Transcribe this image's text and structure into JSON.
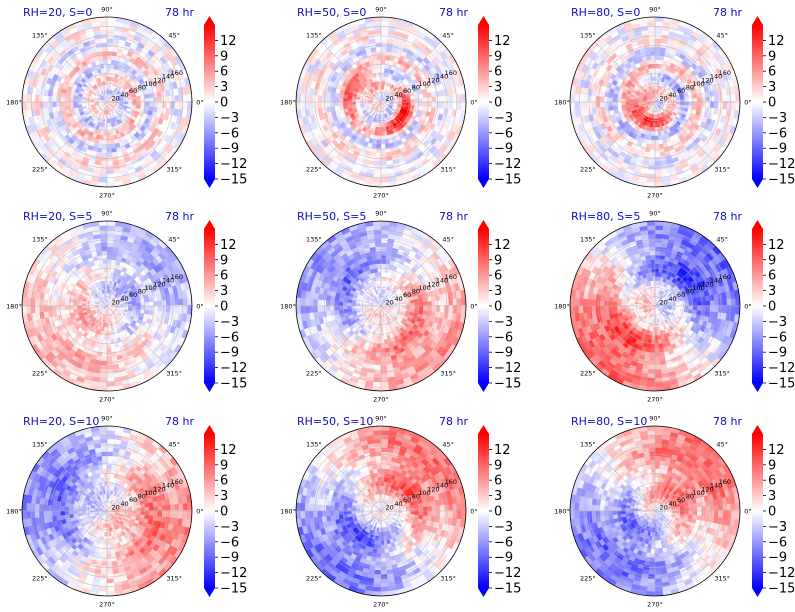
{
  "colors": {
    "title": "#1010c0",
    "neg": "#0000ff",
    "pos": "#ff0000",
    "mid": "#ffffff",
    "grid": "#b4b4b4",
    "edge": "#000000"
  },
  "chart_data": {
    "type": "heatmap",
    "projection": "polar",
    "rows": 3,
    "cols": 3,
    "time_label": "78 hr",
    "angle_ticks": [
      "90°",
      "45°",
      "0°",
      "315°",
      "270°",
      "225°",
      "180°",
      "135°"
    ],
    "angle_tick_degrees": [
      90,
      45,
      0,
      315,
      270,
      225,
      180,
      135
    ],
    "radial_ticks": [
      20,
      40,
      60,
      80,
      100,
      120,
      140,
      160
    ],
    "radial_tick_angle_deg": 22.5,
    "r_max": 180,
    "colorbar": {
      "range": [
        -15,
        15
      ],
      "ticks": [
        12,
        9,
        6,
        3,
        0,
        -3,
        -6,
        -9,
        -12,
        -15
      ],
      "tick_labels": [
        "12",
        "9",
        "6",
        "3",
        "0",
        "−3",
        "−6",
        "−9",
        "−12",
        "−15"
      ],
      "extend": "both",
      "colormap": "bwr"
    },
    "panels": [
      {
        "title": "RH=20, S=0",
        "rh": 20,
        "s": 0,
        "time": "78 hr"
      },
      {
        "title": "RH=50, S=0",
        "rh": 50,
        "s": 0,
        "time": "78 hr"
      },
      {
        "title": "RH=80, S=0",
        "rh": 80,
        "s": 0,
        "time": "78 hr"
      },
      {
        "title": "RH=20, S=5",
        "rh": 20,
        "s": 5,
        "time": "78 hr"
      },
      {
        "title": "RH=50, S=5",
        "rh": 50,
        "s": 5,
        "time": "78 hr"
      },
      {
        "title": "RH=80, S=5",
        "rh": 80,
        "s": 5,
        "time": "78 hr"
      },
      {
        "title": "RH=20, S=10",
        "rh": 20,
        "s": 10,
        "time": "78 hr"
      },
      {
        "title": "RH=50, S=10",
        "rh": 50,
        "s": 10,
        "time": "78 hr"
      },
      {
        "title": "RH=80, S=10",
        "rh": 80,
        "s": 10,
        "time": "78 hr"
      }
    ]
  }
}
